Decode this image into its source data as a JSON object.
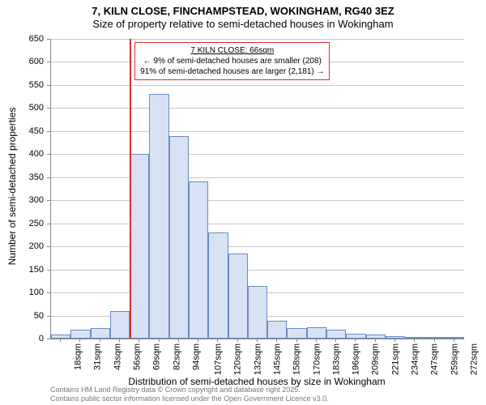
{
  "titles": {
    "main": "7, KILN CLOSE, FINCHAMPSTEAD, WOKINGHAM, RG40 3EZ",
    "sub": "Size of property relative to semi-detached houses in Wokingham"
  },
  "axes": {
    "ylabel": "Number of semi-detached properties",
    "xlabel": "Distribution of semi-detached houses by size in Wokingham"
  },
  "chart": {
    "type": "bar",
    "ylim": [
      0,
      650
    ],
    "yticks": [
      0,
      50,
      100,
      150,
      200,
      250,
      300,
      350,
      400,
      450,
      500,
      550,
      600,
      650
    ],
    "xticks": [
      "18sqm",
      "31sqm",
      "43sqm",
      "56sqm",
      "69sqm",
      "82sqm",
      "94sqm",
      "107sqm",
      "120sqm",
      "132sqm",
      "145sqm",
      "158sqm",
      "170sqm",
      "183sqm",
      "196sqm",
      "209sqm",
      "221sqm",
      "234sqm",
      "247sqm",
      "259sqm",
      "272sqm"
    ],
    "bar_color": "#d7e3f4",
    "bar_border": "#6a8bc0",
    "grid_color": "#c8c8c8",
    "values": [
      8,
      20,
      22,
      60,
      400,
      530,
      440,
      340,
      230,
      185,
      115,
      38,
      22,
      25,
      20,
      10,
      8,
      5,
      3,
      3,
      2
    ]
  },
  "reference": {
    "position_bin": 4,
    "color": "#d93030"
  },
  "annotation": {
    "title": "7 KILN CLOSE: 66sqm",
    "line1": "← 9% of semi-detached houses are smaller (208)",
    "line2": "91% of semi-detached houses are larger (2,181) →",
    "border_color": "#d93030"
  },
  "attribution": {
    "line1": "Contains HM Land Registry data © Crown copyright and database right 2025.",
    "line2": "Contains public sector information licensed under the Open Government Licence v3.0."
  }
}
